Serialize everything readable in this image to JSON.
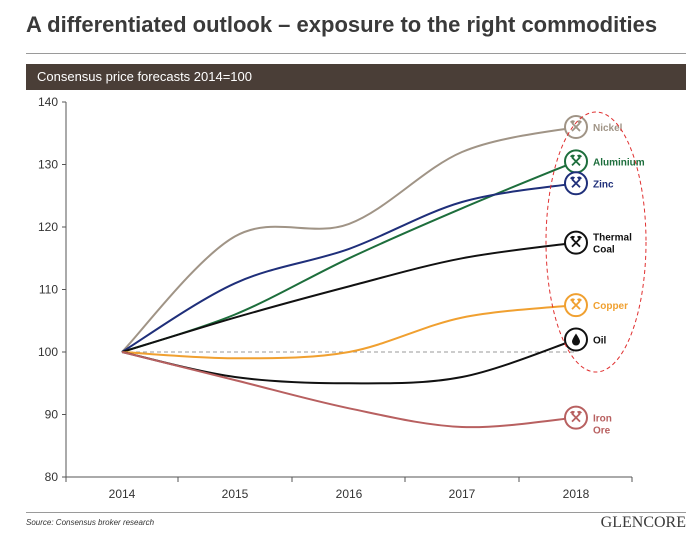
{
  "page": {
    "title": "A differentiated outlook – exposure to the right commodities",
    "source": "Source: Consensus broker research",
    "logo": "GLENCORE"
  },
  "chart_data": {
    "type": "line",
    "title": "Consensus price forecasts 2014=100",
    "xlabel": "",
    "ylabel": "",
    "categories": [
      "2014",
      "2015",
      "2016",
      "2017",
      "2018"
    ],
    "ylim": [
      80,
      140
    ],
    "yticks": [
      80,
      90,
      100,
      110,
      120,
      130,
      140
    ],
    "reference_line": {
      "value": 100,
      "style": "dashed"
    },
    "highlight": "dashed red ellipse around the 2018 end markers",
    "series": [
      {
        "name": "Nickel",
        "color": "#a09486",
        "icon": "pick-hammer-icon",
        "values": [
          100,
          118.5,
          120.5,
          132,
          136
        ]
      },
      {
        "name": "Aluminium",
        "color": "#1d6e3c",
        "icon": "pick-hammer-icon",
        "values": [
          100,
          106,
          115,
          123,
          130.5
        ]
      },
      {
        "name": "Zinc",
        "color": "#1f2f7a",
        "icon": "pick-hammer-icon",
        "values": [
          100,
          111,
          116.5,
          124,
          127
        ]
      },
      {
        "name": "Thermal Coal",
        "color": "#111111",
        "icon": "pick-hammer-icon",
        "values": [
          100,
          105.5,
          110.5,
          115,
          117.5
        ]
      },
      {
        "name": "Copper",
        "color": "#f0a030",
        "icon": "pick-hammer-icon",
        "values": [
          100,
          99,
          100,
          105.5,
          107.5
        ]
      },
      {
        "name": "Oil",
        "color": "#111111",
        "icon": "oil-drop-icon",
        "values": [
          100,
          96,
          95,
          96,
          102
        ]
      },
      {
        "name": "Iron Ore",
        "color": "#b86060",
        "icon": "pick-hammer-icon",
        "values": [
          100,
          95.5,
          91,
          88,
          89.5
        ]
      }
    ]
  }
}
